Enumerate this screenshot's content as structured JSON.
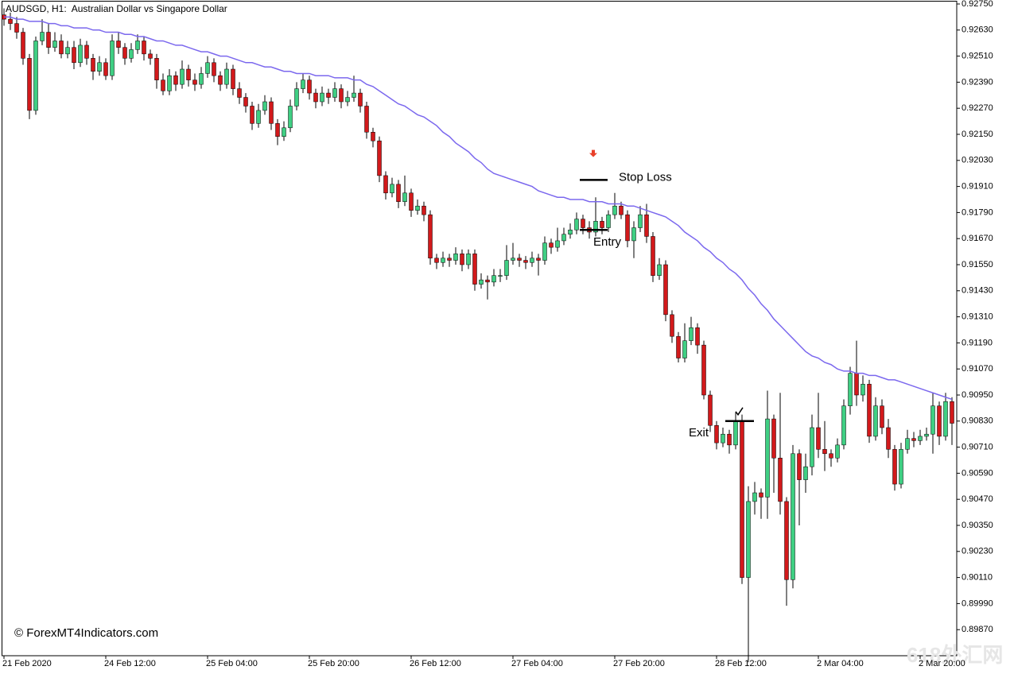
{
  "chart_data": {
    "type": "candlestick",
    "title": "AUDSGD, H1:  Australian Dollar vs Singapore Dollar",
    "bull_color": "#3fcf83",
    "bear_color": "#d2191b",
    "ylim": [
      0.8975,
      0.9275
    ],
    "yticks": [
      {
        "value": 0.9275,
        "label": "0.92750"
      },
      {
        "value": 0.9263,
        "label": "0.92630"
      },
      {
        "value": 0.9251,
        "label": "0.92510"
      },
      {
        "value": 0.9239,
        "label": "0.92390"
      },
      {
        "value": 0.9227,
        "label": "0.92270"
      },
      {
        "value": 0.9215,
        "label": "0.92150"
      },
      {
        "value": 0.9203,
        "label": "0.92030"
      },
      {
        "value": 0.9191,
        "label": "0.91910"
      },
      {
        "value": 0.9179,
        "label": "0.91790"
      },
      {
        "value": 0.9167,
        "label": "0.91670"
      },
      {
        "value": 0.9155,
        "label": "0.91550"
      },
      {
        "value": 0.9143,
        "label": "0.91430"
      },
      {
        "value": 0.9131,
        "label": "0.91310"
      },
      {
        "value": 0.9119,
        "label": "0.91190"
      },
      {
        "value": 0.9107,
        "label": "0.91070"
      },
      {
        "value": 0.9095,
        "label": "0.90950"
      },
      {
        "value": 0.9083,
        "label": "0.90830"
      },
      {
        "value": 0.9071,
        "label": "0.90710"
      },
      {
        "value": 0.9059,
        "label": "0.90590"
      },
      {
        "value": 0.9047,
        "label": "0.90470"
      },
      {
        "value": 0.9035,
        "label": "0.90350"
      },
      {
        "value": 0.9023,
        "label": "0.90230"
      },
      {
        "value": 0.9011,
        "label": "0.90110"
      },
      {
        "value": 0.8999,
        "label": "0.89990"
      },
      {
        "value": 0.8987,
        "label": "0.89870"
      }
    ],
    "categories": [
      "21 Feb 2020",
      null,
      null,
      null,
      null,
      null,
      null,
      null,
      null,
      null,
      null,
      null,
      null,
      null,
      null,
      null,
      "24 Feb 12:00",
      null,
      null,
      null,
      null,
      null,
      null,
      null,
      null,
      null,
      null,
      null,
      null,
      null,
      null,
      null,
      "25 Feb 04:00",
      null,
      null,
      null,
      null,
      null,
      null,
      null,
      null,
      null,
      null,
      null,
      null,
      null,
      null,
      null,
      "25 Feb 20:00",
      null,
      null,
      null,
      null,
      null,
      null,
      null,
      null,
      null,
      null,
      null,
      null,
      null,
      null,
      null,
      "26 Feb 12:00",
      null,
      null,
      null,
      null,
      null,
      null,
      null,
      null,
      null,
      null,
      null,
      null,
      null,
      null,
      null,
      "27 Feb 04:00",
      null,
      null,
      null,
      null,
      null,
      null,
      null,
      null,
      null,
      null,
      null,
      null,
      null,
      null,
      null,
      "27 Feb 20:00",
      null,
      null,
      null,
      null,
      null,
      null,
      null,
      null,
      null,
      null,
      null,
      null,
      null,
      null,
      null,
      "28 Feb 12:00",
      null,
      null,
      null,
      null,
      null,
      null,
      null,
      null,
      null,
      null,
      null,
      null,
      null,
      null,
      null,
      "2 Mar 04:00",
      null,
      null,
      null,
      null,
      null,
      null,
      null,
      null,
      null,
      null,
      null,
      null,
      null,
      null,
      null,
      "2 Mar 20:00",
      null,
      null,
      null,
      null,
      null
    ],
    "candles": [
      [
        0.927,
        0.9273,
        0.9265,
        0.9268
      ],
      [
        0.9268,
        0.9271,
        0.9263,
        0.9266
      ],
      [
        0.9266,
        0.9269,
        0.9259,
        0.9262
      ],
      [
        0.9262,
        0.9264,
        0.9247,
        0.925
      ],
      [
        0.925,
        0.9252,
        0.9222,
        0.9226
      ],
      [
        0.9226,
        0.926,
        0.9224,
        0.9258
      ],
      [
        0.9258,
        0.9268,
        0.9256,
        0.9262
      ],
      [
        0.9262,
        0.9266,
        0.9252,
        0.9255
      ],
      [
        0.9255,
        0.9262,
        0.9253,
        0.9258
      ],
      [
        0.9258,
        0.9261,
        0.925,
        0.9252
      ],
      [
        0.9252,
        0.9258,
        0.925,
        0.9255
      ],
      [
        0.9255,
        0.9258,
        0.9245,
        0.9248
      ],
      [
        0.9248,
        0.9259,
        0.9246,
        0.9256
      ],
      [
        0.9256,
        0.9258,
        0.9247,
        0.925
      ],
      [
        0.925,
        0.9252,
        0.924,
        0.9244
      ],
      [
        0.9244,
        0.9251,
        0.9242,
        0.9248
      ],
      [
        0.9248,
        0.925,
        0.924,
        0.9242
      ],
      [
        0.9242,
        0.9261,
        0.924,
        0.9258
      ],
      [
        0.9258,
        0.9262,
        0.9252,
        0.9255
      ],
      [
        0.9255,
        0.9257,
        0.9247,
        0.925
      ],
      [
        0.925,
        0.9257,
        0.9248,
        0.9254
      ],
      [
        0.9254,
        0.9261,
        0.9252,
        0.9258
      ],
      [
        0.9258,
        0.926,
        0.9249,
        0.9252
      ],
      [
        0.9252,
        0.9254,
        0.9247,
        0.925
      ],
      [
        0.925,
        0.9252,
        0.9236,
        0.924
      ],
      [
        0.924,
        0.9243,
        0.9233,
        0.9235
      ],
      [
        0.9235,
        0.9245,
        0.9233,
        0.9242
      ],
      [
        0.9242,
        0.9244,
        0.9235,
        0.9238
      ],
      [
        0.9238,
        0.9249,
        0.9236,
        0.9245
      ],
      [
        0.9245,
        0.9247,
        0.9237,
        0.924
      ],
      [
        0.924,
        0.9243,
        0.9235,
        0.9238
      ],
      [
        0.9238,
        0.9246,
        0.9236,
        0.9243
      ],
      [
        0.9243,
        0.9251,
        0.9241,
        0.9248
      ],
      [
        0.9248,
        0.925,
        0.9239,
        0.9242
      ],
      [
        0.9242,
        0.9244,
        0.9235,
        0.9238
      ],
      [
        0.9238,
        0.9248,
        0.9236,
        0.9245
      ],
      [
        0.9245,
        0.9247,
        0.9233,
        0.9236
      ],
      [
        0.9236,
        0.9239,
        0.9229,
        0.9232
      ],
      [
        0.9232,
        0.9234,
        0.9225,
        0.9228
      ],
      [
        0.9228,
        0.923,
        0.9217,
        0.922
      ],
      [
        0.922,
        0.9229,
        0.9218,
        0.9226
      ],
      [
        0.9226,
        0.9233,
        0.9224,
        0.923
      ],
      [
        0.923,
        0.9232,
        0.9217,
        0.922
      ],
      [
        0.922,
        0.9222,
        0.921,
        0.9214
      ],
      [
        0.9214,
        0.9221,
        0.9212,
        0.9218
      ],
      [
        0.9218,
        0.9231,
        0.9216,
        0.9228
      ],
      [
        0.9228,
        0.9239,
        0.9226,
        0.9236
      ],
      [
        0.9236,
        0.9243,
        0.9234,
        0.924
      ],
      [
        0.924,
        0.9242,
        0.9231,
        0.9234
      ],
      [
        0.9234,
        0.9236,
        0.9227,
        0.923
      ],
      [
        0.923,
        0.9237,
        0.9228,
        0.9234
      ],
      [
        0.9234,
        0.9236,
        0.9229,
        0.9232
      ],
      [
        0.9232,
        0.9239,
        0.923,
        0.9236
      ],
      [
        0.9236,
        0.9238,
        0.9227,
        0.923
      ],
      [
        0.923,
        0.9235,
        0.9228,
        0.9232
      ],
      [
        0.9232,
        0.9242,
        0.923,
        0.9234
      ],
      [
        0.9234,
        0.9236,
        0.9225,
        0.9228
      ],
      [
        0.9228,
        0.923,
        0.9213,
        0.9216
      ],
      [
        0.9216,
        0.9218,
        0.9209,
        0.9212
      ],
      [
        0.9212,
        0.9214,
        0.9193,
        0.9196
      ],
      [
        0.9196,
        0.9198,
        0.9185,
        0.9188
      ],
      [
        0.9188,
        0.9195,
        0.9186,
        0.9192
      ],
      [
        0.9192,
        0.9194,
        0.9181,
        0.9184
      ],
      [
        0.9184,
        0.9196,
        0.9182,
        0.9188
      ],
      [
        0.9188,
        0.919,
        0.9177,
        0.918
      ],
      [
        0.918,
        0.9185,
        0.9178,
        0.9182
      ],
      [
        0.9182,
        0.9184,
        0.9175,
        0.9178
      ],
      [
        0.9178,
        0.918,
        0.9155,
        0.9158
      ],
      [
        0.9158,
        0.916,
        0.9153,
        0.9156
      ],
      [
        0.9156,
        0.9161,
        0.9154,
        0.9158
      ],
      [
        0.9158,
        0.916,
        0.9154,
        0.9157
      ],
      [
        0.9157,
        0.9163,
        0.9155,
        0.916
      ],
      [
        0.916,
        0.9162,
        0.9152,
        0.9155
      ],
      [
        0.9155,
        0.9162,
        0.9153,
        0.916
      ],
      [
        0.916,
        0.9162,
        0.9143,
        0.9146
      ],
      [
        0.9146,
        0.9151,
        0.9144,
        0.9148
      ],
      [
        0.9148,
        0.915,
        0.9139,
        0.9147
      ],
      [
        0.9147,
        0.9153,
        0.9145,
        0.915
      ],
      [
        0.915,
        0.9153,
        0.9147,
        0.915
      ],
      [
        0.915,
        0.9164,
        0.9148,
        0.9157
      ],
      [
        0.9157,
        0.9165,
        0.9155,
        0.9158
      ],
      [
        0.9158,
        0.916,
        0.9154,
        0.9157
      ],
      [
        0.9157,
        0.9159,
        0.9153,
        0.9156
      ],
      [
        0.9156,
        0.9161,
        0.9154,
        0.9158
      ],
      [
        0.9158,
        0.916,
        0.915,
        0.9157
      ],
      [
        0.9157,
        0.9168,
        0.9155,
        0.9165
      ],
      [
        0.9165,
        0.9167,
        0.916,
        0.9163
      ],
      [
        0.9163,
        0.9172,
        0.9161,
        0.9166
      ],
      [
        0.9166,
        0.9172,
        0.9164,
        0.9169
      ],
      [
        0.9169,
        0.9174,
        0.9167,
        0.9171
      ],
      [
        0.9171,
        0.9179,
        0.9169,
        0.9176
      ],
      [
        0.9176,
        0.9178,
        0.9169,
        0.9172
      ],
      [
        0.9172,
        0.9175,
        0.9167,
        0.917
      ],
      [
        0.917,
        0.9186,
        0.9168,
        0.9175
      ],
      [
        0.9175,
        0.9177,
        0.9169,
        0.9172
      ],
      [
        0.9172,
        0.918,
        0.917,
        0.9178
      ],
      [
        0.9178,
        0.9188,
        0.9176,
        0.9182
      ],
      [
        0.9182,
        0.9184,
        0.9176,
        0.9178
      ],
      [
        0.9178,
        0.918,
        0.9163,
        0.9166
      ],
      [
        0.9166,
        0.9175,
        0.9158,
        0.9172
      ],
      [
        0.9172,
        0.9182,
        0.917,
        0.9178
      ],
      [
        0.9178,
        0.9183,
        0.9165,
        0.9168
      ],
      [
        0.9168,
        0.917,
        0.9147,
        0.915
      ],
      [
        0.915,
        0.9158,
        0.9148,
        0.9155
      ],
      [
        0.9155,
        0.9157,
        0.9129,
        0.9132
      ],
      [
        0.9132,
        0.9134,
        0.9119,
        0.9122
      ],
      [
        0.9122,
        0.9124,
        0.911,
        0.9112
      ],
      [
        0.9112,
        0.9128,
        0.911,
        0.912
      ],
      [
        0.912,
        0.9131,
        0.9118,
        0.9126
      ],
      [
        0.9126,
        0.9128,
        0.9114,
        0.9118
      ],
      [
        0.9118,
        0.912,
        0.9093,
        0.9095
      ],
      [
        0.9095,
        0.9097,
        0.9078,
        0.9081
      ],
      [
        0.9081,
        0.9083,
        0.907,
        0.9073
      ],
      [
        0.9073,
        0.908,
        0.9071,
        0.9077
      ],
      [
        0.9077,
        0.9079,
        0.9068,
        0.9072
      ],
      [
        0.9072,
        0.9087,
        0.907,
        0.9083
      ],
      [
        0.9083,
        0.9086,
        0.9008,
        0.9011
      ],
      [
        0.9011,
        0.9053,
        0.8972,
        0.9046
      ],
      [
        0.9046,
        0.9055,
        0.904,
        0.905
      ],
      [
        0.905,
        0.9052,
        0.9038,
        0.9048
      ],
      [
        0.9048,
        0.9097,
        0.9038,
        0.9084
      ],
      [
        0.9084,
        0.9086,
        0.905,
        0.9066
      ],
      [
        0.9066,
        0.9096,
        0.904,
        0.9046
      ],
      [
        0.9046,
        0.9048,
        0.8998,
        0.901
      ],
      [
        0.901,
        0.9072,
        0.9006,
        0.9068
      ],
      [
        0.9068,
        0.907,
        0.9035,
        0.9056
      ],
      [
        0.9056,
        0.9068,
        0.905,
        0.9062
      ],
      [
        0.9062,
        0.9086,
        0.9058,
        0.908
      ],
      [
        0.908,
        0.9096,
        0.9066,
        0.907
      ],
      [
        0.907,
        0.9083,
        0.906,
        0.9068
      ],
      [
        0.9068,
        0.907,
        0.9062,
        0.9066
      ],
      [
        0.9066,
        0.9075,
        0.9064,
        0.9072
      ],
      [
        0.9072,
        0.9093,
        0.907,
        0.909
      ],
      [
        0.909,
        0.9108,
        0.9086,
        0.9105
      ],
      [
        0.9105,
        0.912,
        0.909,
        0.9095
      ],
      [
        0.9095,
        0.9104,
        0.9092,
        0.91
      ],
      [
        0.91,
        0.9102,
        0.9073,
        0.9076
      ],
      [
        0.9076,
        0.9094,
        0.9074,
        0.909
      ],
      [
        0.909,
        0.9093,
        0.9077,
        0.908
      ],
      [
        0.908,
        0.9084,
        0.9066,
        0.907
      ],
      [
        0.907,
        0.9072,
        0.9051,
        0.9054
      ],
      [
        0.9054,
        0.9073,
        0.9052,
        0.907
      ],
      [
        0.907,
        0.9079,
        0.9068,
        0.9075
      ],
      [
        0.9075,
        0.9078,
        0.9071,
        0.9074
      ],
      [
        0.9074,
        0.9079,
        0.9072,
        0.9076
      ],
      [
        0.9076,
        0.908,
        0.9074,
        0.9077
      ],
      [
        0.9077,
        0.9096,
        0.9068,
        0.909
      ],
      [
        0.909,
        0.9092,
        0.9072,
        0.9076
      ],
      [
        0.9076,
        0.9096,
        0.9074,
        0.9092
      ],
      [
        0.9092,
        0.9094,
        0.9072,
        0.9082
      ]
    ],
    "ma": {
      "color": "#7b68ee",
      "values": [
        0.9269,
        0.9269,
        0.9268,
        0.9268,
        0.9267,
        0.9267,
        0.9267,
        0.9266,
        0.9266,
        0.9265,
        0.9265,
        0.9264,
        0.9264,
        0.9264,
        0.9263,
        0.9263,
        0.9262,
        0.9262,
        0.9262,
        0.9261,
        0.9261,
        0.926,
        0.926,
        0.9259,
        0.9258,
        0.9258,
        0.9257,
        0.9256,
        0.9256,
        0.9255,
        0.9254,
        0.9253,
        0.9253,
        0.9252,
        0.9251,
        0.9251,
        0.925,
        0.9249,
        0.9248,
        0.9248,
        0.9247,
        0.9246,
        0.9246,
        0.9245,
        0.9244,
        0.9244,
        0.9243,
        0.9243,
        0.9243,
        0.9242,
        0.9242,
        0.9242,
        0.9241,
        0.9241,
        0.9241,
        0.924,
        0.924,
        0.9238,
        0.9237,
        0.9235,
        0.9233,
        0.9231,
        0.9229,
        0.9228,
        0.9226,
        0.9224,
        0.9223,
        0.9221,
        0.9219,
        0.9216,
        0.9214,
        0.9211,
        0.9209,
        0.9207,
        0.9204,
        0.9202,
        0.9199,
        0.9197,
        0.9196,
        0.9195,
        0.9194,
        0.9193,
        0.9192,
        0.9191,
        0.9189,
        0.9188,
        0.9187,
        0.9186,
        0.9186,
        0.9185,
        0.9185,
        0.9185,
        0.9184,
        0.9184,
        0.9184,
        0.9183,
        0.9183,
        0.9183,
        0.9182,
        0.9182,
        0.9181,
        0.918,
        0.9179,
        0.9178,
        0.9177,
        0.9175,
        0.9173,
        0.917,
        0.9168,
        0.9166,
        0.9163,
        0.9161,
        0.9158,
        0.9156,
        0.9153,
        0.9151,
        0.9148,
        0.9144,
        0.9141,
        0.9137,
        0.9134,
        0.913,
        0.9127,
        0.9124,
        0.9121,
        0.9118,
        0.9115,
        0.9113,
        0.9112,
        0.911,
        0.9109,
        0.9107,
        0.9106,
        0.9106,
        0.9105,
        0.9105,
        0.9104,
        0.9104,
        0.9103,
        0.9102,
        0.9102,
        0.9101,
        0.91,
        0.9099,
        0.9098,
        0.9097,
        0.9096,
        0.9095,
        0.9094,
        0.9093
      ]
    },
    "annotations": {
      "sell_arrow": {
        "value": 0.9206,
        "color": "#e8402a"
      },
      "stop_loss": {
        "text": "Stop Loss",
        "value": 0.9194
      },
      "entry": {
        "text": "Entry",
        "value": 0.9171
      },
      "exit": {
        "text": "Exit",
        "value": 0.9083
      }
    },
    "credit": "© ForexMT4Indicators.com",
    "watermark": "618外汇网"
  }
}
